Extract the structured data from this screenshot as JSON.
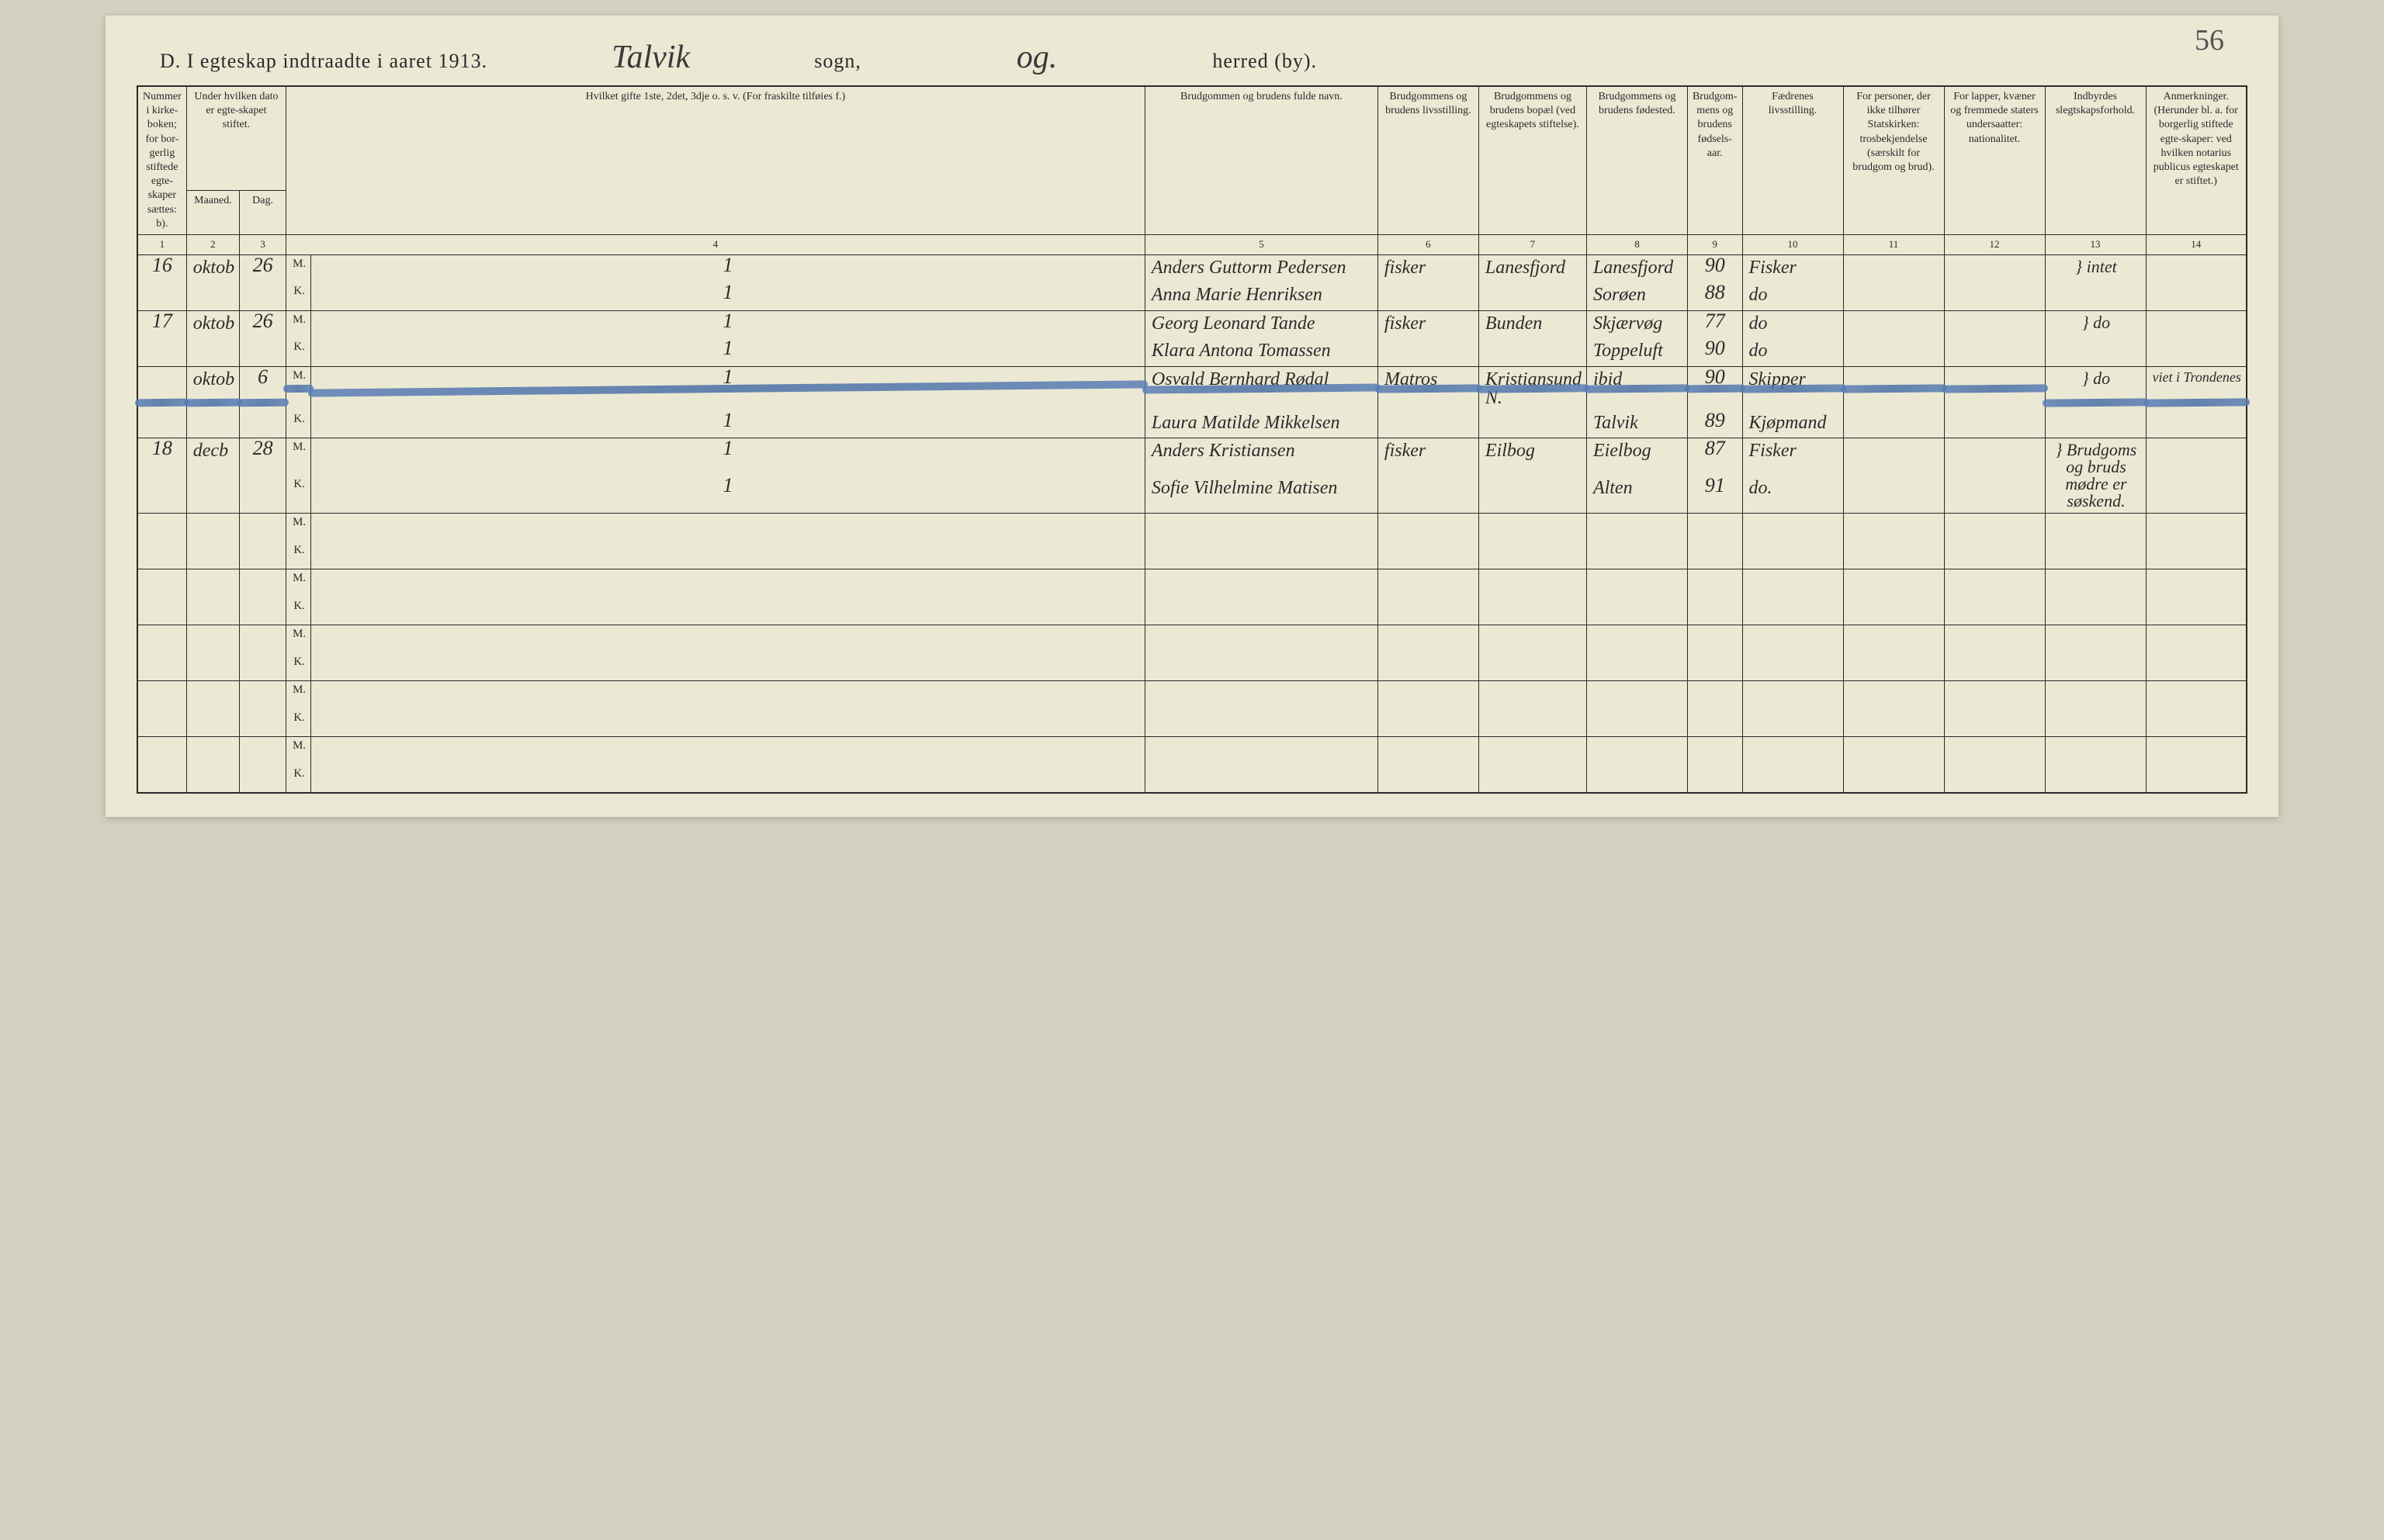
{
  "page_number_handwritten": "56",
  "title": {
    "prefix": "D.  I egteskap indtraadte i aaret 1913.",
    "sogn_script": "Talvik",
    "sogn_label": "sogn,",
    "og_script": "og.",
    "herred_label": "herred (by)."
  },
  "columns": [
    {
      "n": "1",
      "label": "Nummer i kirke-boken; for bor-gerlig stiftede egte-skaper sættes: b)."
    },
    {
      "n": "2",
      "label": "Maaned."
    },
    {
      "n": "3",
      "label": "Dag."
    },
    {
      "n": "4",
      "label": "Hvilket gifte 1ste, 2det, 3dje o. s. v. (For fraskilte tilføies f.)"
    },
    {
      "n": "5",
      "label": "Brudgommen og brudens fulde navn."
    },
    {
      "n": "6",
      "label": "Brudgommens og brudens livsstilling."
    },
    {
      "n": "7",
      "label": "Brudgommens og brudens bopæl (ved egteskapets stiftelse)."
    },
    {
      "n": "8",
      "label": "Brudgommens og brudens fødested."
    },
    {
      "n": "9",
      "label": "Brudgom-mens og brudens fødsels-aar."
    },
    {
      "n": "10",
      "label": "Fædrenes livsstilling."
    },
    {
      "n": "11",
      "label": "For personer, der ikke tilhører Statskirken: trosbekjendelse (særskilt for brudgom og brud)."
    },
    {
      "n": "12",
      "label": "For lapper, kvæner og fremmede staters undersaatter: nationalitet."
    },
    {
      "n": "13",
      "label": "Indbyrdes slegtskapsforhold."
    },
    {
      "n": "14",
      "label": "Anmerkninger. (Herunder bl. a. for borgerlig stiftede egte-skaper: ved hvilken notarius publicus egteskapet er stiftet.)"
    }
  ],
  "date_group_header": "Under hvilken dato er egte-skapet stiftet.",
  "mk": {
    "m": "M.",
    "k": "K."
  },
  "entries": [
    {
      "num": "16",
      "month": "oktob",
      "day": "26",
      "m": {
        "gifte": "1",
        "name": "Anders Guttorm Pedersen",
        "occ": "fisker",
        "residence": "Lanesfjord",
        "birthplace": "Lanesfjord",
        "year": "90",
        "father": "Fisker"
      },
      "k": {
        "gifte": "1",
        "name": "Anna Marie Henriksen",
        "occ": "",
        "residence": "",
        "birthplace": "Sorøen",
        "year": "88",
        "father": "do"
      },
      "rel": "intet",
      "remark": ""
    },
    {
      "num": "17",
      "month": "oktob",
      "day": "26",
      "m": {
        "gifte": "1",
        "name": "Georg Leonard Tande",
        "occ": "fisker",
        "residence": "Bunden",
        "birthplace": "Skjærvøg",
        "year": "77",
        "father": "do"
      },
      "k": {
        "gifte": "1",
        "name": "Klara Antona Tomassen",
        "occ": "",
        "residence": "",
        "birthplace": "Toppeluft",
        "year": "90",
        "father": "do"
      },
      "rel": "do",
      "remark": ""
    },
    {
      "num": "",
      "month": "oktob",
      "day": "6",
      "struck": true,
      "m": {
        "gifte": "1",
        "name": "Osvald Bernhard Rødal",
        "occ": "Matros",
        "residence": "Kristiansund N.",
        "birthplace": "ibid",
        "year": "90",
        "father": "Skipper"
      },
      "k": {
        "gifte": "1",
        "name": "Laura Matilde Mikkelsen",
        "occ": "",
        "residence": "",
        "birthplace": "Talvik",
        "year": "89",
        "father": "Kjøpmand"
      },
      "rel": "do",
      "remark": "viet i Trondenes"
    },
    {
      "num": "18",
      "month": "decb",
      "day": "28",
      "m": {
        "gifte": "1",
        "name": "Anders Kristiansen",
        "occ": "fisker",
        "residence": "Eilbog",
        "birthplace": "Eielbog",
        "year": "87",
        "father": "Fisker"
      },
      "k": {
        "gifte": "1",
        "name": "Sofie Vilhelmine Matisen",
        "occ": "",
        "residence": "",
        "birthplace": "Alten",
        "year": "91",
        "father": "do."
      },
      "rel": "Brudgoms og bruds mødre er søskend.",
      "remark": ""
    }
  ],
  "empty_pairs": 5,
  "styling": {
    "page_bg": "#ebe8d4",
    "border_color": "#2a2a2a",
    "script_color": "#2b2b2b",
    "strike_color": "#5a7fb5",
    "header_fontsize": 14,
    "script_fontsize": 24,
    "title_fontsize": 26
  }
}
